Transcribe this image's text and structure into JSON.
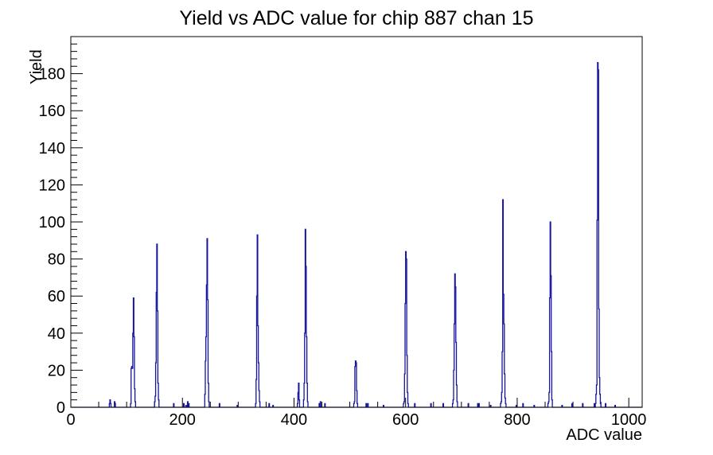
{
  "window": {
    "background": "#ffffff"
  },
  "chart_data": {
    "type": "bar",
    "subtype": "step-histogram",
    "title": "Yield vs ADC value for chip 887 chan 15",
    "xlabel": "ADC value",
    "ylabel": "Yield",
    "xlim": [
      0,
      1024
    ],
    "ylim": [
      0,
      200
    ],
    "grid": false,
    "legend": false,
    "line_color": "#14149c",
    "axis_color": "#000000",
    "x_tick_values": [
      0,
      200,
      400,
      600,
      800,
      1000
    ],
    "x_tick_labels": [
      "0",
      "200",
      "400",
      "600",
      "800",
      "1000"
    ],
    "x_minor_step": 50,
    "y_tick_values": [
      0,
      20,
      40,
      60,
      80,
      100,
      120,
      140,
      160,
      180
    ],
    "y_tick_labels": [
      "0",
      "20",
      "40",
      "60",
      "80",
      "100",
      "120",
      "140",
      "160",
      "180"
    ],
    "y_major_step": 20,
    "y_minor_step": 4,
    "main_peaks": [
      {
        "adc": 112,
        "yield": 59
      },
      {
        "adc": 154,
        "yield": 88
      },
      {
        "adc": 244,
        "yield": 91
      },
      {
        "adc": 334,
        "yield": 93
      },
      {
        "adc": 408,
        "yield": 13
      },
      {
        "adc": 420,
        "yield": 96
      },
      {
        "adc": 510,
        "yield": 25
      },
      {
        "adc": 600,
        "yield": 84
      },
      {
        "adc": 688,
        "yield": 72
      },
      {
        "adc": 774,
        "yield": 112
      },
      {
        "adc": 859,
        "yield": 100
      },
      {
        "adc": 944,
        "yield": 186
      }
    ],
    "bins_format": "[adc_value, yield]",
    "bins": [
      [
        69,
        2
      ],
      [
        70,
        4
      ],
      [
        71,
        2
      ],
      [
        78,
        3
      ],
      [
        79,
        2
      ],
      [
        107,
        2
      ],
      [
        108,
        21
      ],
      [
        109,
        22
      ],
      [
        110,
        21
      ],
      [
        111,
        40
      ],
      [
        112,
        59
      ],
      [
        113,
        38
      ],
      [
        114,
        10
      ],
      [
        115,
        3
      ],
      [
        150,
        3
      ],
      [
        151,
        6
      ],
      [
        152,
        24
      ],
      [
        153,
        62
      ],
      [
        154,
        88
      ],
      [
        155,
        52
      ],
      [
        156,
        13
      ],
      [
        157,
        4
      ],
      [
        184,
        2
      ],
      [
        202,
        2
      ],
      [
        206,
        1
      ],
      [
        209,
        3
      ],
      [
        211,
        2
      ],
      [
        240,
        7
      ],
      [
        241,
        25
      ],
      [
        242,
        38
      ],
      [
        243,
        66
      ],
      [
        244,
        91
      ],
      [
        245,
        58
      ],
      [
        246,
        13
      ],
      [
        247,
        3
      ],
      [
        266,
        2
      ],
      [
        298,
        1
      ],
      [
        331,
        2
      ],
      [
        332,
        15
      ],
      [
        333,
        60
      ],
      [
        334,
        93
      ],
      [
        335,
        44
      ],
      [
        336,
        24
      ],
      [
        337,
        9
      ],
      [
        338,
        3
      ],
      [
        355,
        2
      ],
      [
        362,
        1
      ],
      [
        406,
        2
      ],
      [
        407,
        8
      ],
      [
        408,
        13
      ],
      [
        409,
        4
      ],
      [
        417,
        4
      ],
      [
        418,
        13
      ],
      [
        419,
        40
      ],
      [
        420,
        96
      ],
      [
        421,
        76
      ],
      [
        422,
        38
      ],
      [
        423,
        13
      ],
      [
        424,
        3
      ],
      [
        445,
        2
      ],
      [
        447,
        3
      ],
      [
        455,
        2
      ],
      [
        507,
        2
      ],
      [
        508,
        3
      ],
      [
        509,
        22
      ],
      [
        510,
        25
      ],
      [
        511,
        24
      ],
      [
        512,
        9
      ],
      [
        513,
        2
      ],
      [
        529,
        2
      ],
      [
        532,
        2
      ],
      [
        560,
        1
      ],
      [
        596,
        2
      ],
      [
        597,
        3
      ],
      [
        598,
        18
      ],
      [
        599,
        56
      ],
      [
        600,
        84
      ],
      [
        601,
        80
      ],
      [
        602,
        28
      ],
      [
        603,
        8
      ],
      [
        604,
        2
      ],
      [
        616,
        2
      ],
      [
        645,
        2
      ],
      [
        667,
        2
      ],
      [
        684,
        2
      ],
      [
        685,
        4
      ],
      [
        686,
        20
      ],
      [
        687,
        45
      ],
      [
        688,
        72
      ],
      [
        689,
        65
      ],
      [
        690,
        35
      ],
      [
        691,
        12
      ],
      [
        692,
        3
      ],
      [
        712,
        2
      ],
      [
        729,
        2
      ],
      [
        731,
        2
      ],
      [
        752,
        1
      ],
      [
        770,
        2
      ],
      [
        771,
        3
      ],
      [
        772,
        8
      ],
      [
        773,
        30
      ],
      [
        774,
        112
      ],
      [
        775,
        61
      ],
      [
        776,
        45
      ],
      [
        777,
        18
      ],
      [
        778,
        5
      ],
      [
        779,
        2
      ],
      [
        798,
        1
      ],
      [
        810,
        2
      ],
      [
        830,
        1
      ],
      [
        855,
        2
      ],
      [
        856,
        3
      ],
      [
        857,
        8
      ],
      [
        858,
        59
      ],
      [
        859,
        100
      ],
      [
        860,
        71
      ],
      [
        861,
        30
      ],
      [
        862,
        4
      ],
      [
        880,
        1
      ],
      [
        898,
        2
      ],
      [
        917,
        2
      ],
      [
        938,
        2
      ],
      [
        940,
        2
      ],
      [
        941,
        7
      ],
      [
        942,
        12
      ],
      [
        943,
        101
      ],
      [
        944,
        186
      ],
      [
        945,
        182
      ],
      [
        946,
        53
      ],
      [
        947,
        16
      ],
      [
        948,
        7
      ],
      [
        949,
        2
      ],
      [
        958,
        2
      ],
      [
        975,
        1
      ]
    ]
  }
}
